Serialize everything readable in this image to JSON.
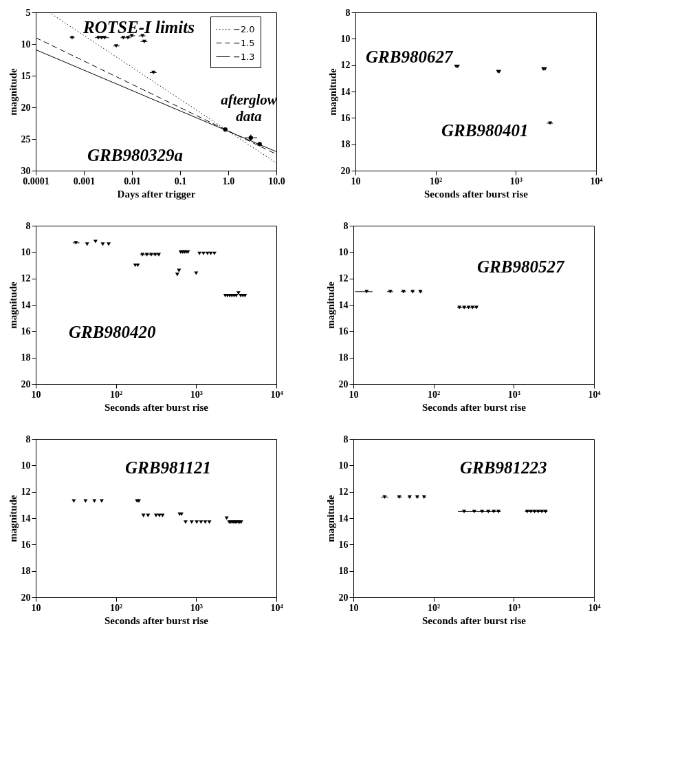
{
  "chart_data": [
    {
      "type": "scatter",
      "title": "GRB980329a",
      "xlabel": "Days after trigger",
      "ylabel": "magnitude",
      "log": "x",
      "legend": "top right",
      "xlim": [
        0.0001,
        10
      ],
      "xticks": [
        0.0001,
        0.001,
        0.01,
        0.1,
        {
          "value": 1,
          "label": "1.0"
        },
        {
          "value": 10,
          "label": "10.0"
        }
      ],
      "ylim": [
        30,
        5
      ],
      "yticks": [
        5,
        10,
        15,
        20,
        25,
        30
      ],
      "series": [
        {
          "name": "ROTSE-I limits",
          "marker": "triangle",
          "color": "#000000",
          "x": [
            0.00057,
            0.002,
            0.00234,
            0.0027,
            0.0047,
            0.0066,
            0.0082,
            0.0099,
            0.0165,
            0.018,
            0.028
          ],
          "values": [
            9.0,
            9.0,
            9.0,
            9.0,
            10.3,
            9.0,
            9.0,
            8.7,
            8.7,
            9.6,
            14.5
          ],
          "xerrors": [
            [
              0.00051,
              0.00064
            ],
            [
              0.0017,
              0.0021
            ],
            [
              0.0021,
              0.0027
            ],
            [
              0.0027,
              0.0033
            ],
            [
              0.0041,
              0.0055
            ],
            [
              0.0058,
              0.0073
            ],
            [
              0.0073,
              0.0093
            ],
            [
              0.0085,
              0.0116
            ],
            [
              0.0138,
              0.0191
            ],
            [
              0.0151,
              0.0209
            ],
            [
              0.0234,
              0.0324
            ]
          ]
        },
        {
          "name": "afterglow data",
          "marker": "circle",
          "color": "#000000",
          "x": [
            0.87,
            2.94,
            4.5
          ],
          "values": [
            23.5,
            24.8,
            25.8
          ],
          "errors": [
            0.1,
            0.5,
            0.2
          ],
          "xerrors": [
            [
              0.8,
              0.95
            ],
            [
              2.2,
              4.0
            ],
            [
              4.2,
              4.8
            ]
          ]
        },
        {
          "name": "−2.0",
          "type": "line",
          "line_style": "dotted",
          "color": "#000000",
          "x": [
            0.00019,
            10
          ],
          "values": [
            5,
            28.8
          ]
        },
        {
          "name": "−1.5",
          "type": "line",
          "line_style": "dashed",
          "color": "#000000",
          "x": [
            0.0001,
            10
          ],
          "values": [
            9.0,
            27.4
          ]
        },
        {
          "name": "−1.3",
          "type": "line",
          "line_style": "solid",
          "color": "#000000",
          "x": [
            0.0001,
            10
          ],
          "values": [
            10.9,
            27.0
          ]
        }
      ]
    },
    {
      "type": "scatter",
      "xlabel": "Seconds after burst rise",
      "ylabel": "magnitude",
      "log": "x",
      "xlim": [
        10,
        10000
      ],
      "xticks": [
        10,
        {
          "value": 100,
          "label": "10²"
        },
        {
          "value": 1000,
          "label": "10³"
        },
        {
          "value": 10000,
          "label": "10⁴"
        }
      ],
      "ylim": [
        20,
        8
      ],
      "yticks": [
        8,
        10,
        12,
        14,
        16,
        18,
        20
      ],
      "series": [
        {
          "name": "GRB980627",
          "marker": "triangle",
          "color": "#000000",
          "x": [
            180,
            189,
            600,
            620,
            2193,
            2311
          ],
          "values": [
            12.1,
            12.1,
            12.5,
            12.5,
            12.3,
            12.3
          ]
        },
        {
          "name": "GRB980401",
          "marker": "triangle",
          "color": "#000000",
          "x": [
            2673
          ],
          "values": [
            16.4
          ],
          "xerrors": [
            [
              2440,
              2900
            ]
          ]
        }
      ]
    },
    {
      "type": "scatter",
      "xlabel": "Seconds after burst rise",
      "ylabel": "magnitude",
      "log": "x",
      "xlim": [
        10,
        10000
      ],
      "xticks": [
        10,
        {
          "value": 100,
          "label": "10²"
        },
        {
          "value": 1000,
          "label": "10³"
        },
        {
          "value": 10000,
          "label": "10⁴"
        }
      ],
      "ylim": [
        20,
        8
      ],
      "yticks": [
        8,
        10,
        12,
        14,
        16,
        18,
        20
      ],
      "series": [
        {
          "name": "GRB980420",
          "marker": "triangle",
          "color": "#000000",
          "x": [
            31.6,
            43.7,
            55.6,
            68.5,
            81,
            174,
            187,
            214,
            243,
            275,
            308,
            342,
            581,
            611,
            641,
            676,
            711,
            750,
            790,
            1000,
            1100,
            1233,
            1384,
            1520,
            1688,
            2310,
            2462,
            2620,
            2788,
            2970,
            3162,
            3367,
            3585,
            3817,
            4064
          ],
          "values": [
            9.3,
            9.4,
            9.2,
            9.4,
            9.4,
            11.0,
            11.0,
            10.2,
            10.2,
            10.2,
            10.2,
            10.2,
            11.7,
            11.4,
            10.0,
            10.0,
            10.0,
            10.0,
            10.0,
            11.6,
            10.1,
            10.1,
            10.1,
            10.1,
            10.1,
            13.3,
            13.3,
            13.3,
            13.3,
            13.3,
            13.3,
            13.1,
            13.3,
            13.3,
            13.3
          ],
          "xerrors": [
            [
              29,
              35
            ],
            null,
            null,
            null,
            null,
            null,
            null,
            [
              200,
              225
            ],
            [
              225,
              252
            ],
            [
              252,
              283
            ],
            [
              283,
              318
            ],
            [
              318,
              356
            ],
            null,
            null,
            null,
            null,
            null,
            null,
            null,
            null,
            null,
            null,
            null,
            null,
            null,
            null,
            null,
            null,
            null,
            null,
            null,
            null,
            null,
            null,
            null
          ]
        }
      ]
    },
    {
      "type": "scatter",
      "xlabel": "Seconds after burst rise",
      "ylabel": "magnitude",
      "log": "x",
      "xlim": [
        10,
        10000
      ],
      "xticks": [
        10,
        {
          "value": 100,
          "label": "10²"
        },
        {
          "value": 1000,
          "label": "10³"
        },
        {
          "value": 10000,
          "label": "10⁴"
        }
      ],
      "ylim": [
        20,
        8
      ],
      "yticks": [
        8,
        10,
        12,
        14,
        16,
        18,
        20
      ],
      "series": [
        {
          "name": "GRB980527",
          "marker": "triangle",
          "color": "#000000",
          "x": [
            14.6,
            28.8,
            42.2,
            54.8,
            68.5,
            210,
            241,
            273,
            306,
            342
          ],
          "values": [
            13.0,
            13.0,
            13.0,
            13.0,
            13.0,
            14.2,
            14.2,
            14.2,
            14.2,
            14.2
          ],
          "xerrors": [
            [
              10.5,
              17.3
            ],
            [
              26.3,
              31.3
            ],
            [
              39,
              45.2
            ],
            [
              52,
              57.7
            ],
            [
              65.2,
              72.3
            ],
            [
              197,
              222
            ],
            [
              222,
              249
            ],
            [
              249,
              280
            ],
            [
              280,
              315
            ],
            [
              315,
              355
            ]
          ]
        }
      ]
    },
    {
      "type": "scatter",
      "xlabel": "Seconds after burst rise",
      "ylabel": "magnitude",
      "log": "x",
      "xlim": [
        10,
        10000
      ],
      "xticks": [
        10,
        {
          "value": 100,
          "label": "10²"
        },
        {
          "value": 1000,
          "label": "10³"
        },
        {
          "value": 10000,
          "label": "10⁴"
        }
      ],
      "ylim": [
        20,
        8
      ],
      "yticks": [
        8,
        10,
        12,
        14,
        16,
        18,
        20
      ],
      "series": [
        {
          "name": "GRB981121",
          "marker": "triangle",
          "color": "#000000",
          "x": [
            29.8,
            41.7,
            53.8,
            66.4,
            183,
            193,
            220,
            251,
            316,
            348,
            381,
            622,
            656,
            738,
            879,
            1016,
            1149,
            1298,
            1459,
            2399,
            2582,
            2697,
            2815,
            2938,
            3066,
            3200,
            3340,
            3486,
            3638
          ],
          "values": [
            12.7,
            12.7,
            12.7,
            12.7,
            12.7,
            12.7,
            13.8,
            13.8,
            13.8,
            13.8,
            13.8,
            13.7,
            13.7,
            14.3,
            14.3,
            14.3,
            14.3,
            14.3,
            14.3,
            14.0,
            14.3,
            14.3,
            14.3,
            14.3,
            14.3,
            14.3,
            14.3,
            14.3,
            14.3
          ]
        }
      ]
    },
    {
      "type": "scatter",
      "xlabel": "Seconds after burst rise",
      "ylabel": "magnitude",
      "log": "x",
      "xlim": [
        10,
        10000
      ],
      "xticks": [
        10,
        {
          "value": 100,
          "label": "10²"
        },
        {
          "value": 1000,
          "label": "10³"
        },
        {
          "value": 10000,
          "label": "10⁴"
        }
      ],
      "ylim": [
        20,
        8
      ],
      "yticks": [
        8,
        10,
        12,
        14,
        16,
        18,
        20
      ],
      "series": [
        {
          "name": "GRB981223",
          "marker": "triangle",
          "color": "#000000",
          "x": [
            24.5,
            37.3,
            50.4,
            62.5,
            76.0,
            240,
            321,
            402,
            481,
            563,
            643,
            1469,
            1633,
            1815,
            2016,
            2241,
            2490
          ],
          "values": [
            12.4,
            12.4,
            12.4,
            12.4,
            12.4,
            13.5,
            13.5,
            13.5,
            13.5,
            13.5,
            13.5,
            13.5,
            13.5,
            13.5,
            13.5,
            13.5,
            13.5
          ],
          "xerrors": [
            [
              22.2,
              27.0
            ],
            [
              35.1,
              40.4
            ],
            [
              47.5,
              52.3
            ],
            [
              59.8,
              65.9
            ],
            [
              73.3,
              80.5
            ],
            [
              201,
              277
            ],
            [
              277,
              360
            ],
            [
              360,
              440
            ],
            [
              440,
              520
            ],
            [
              520,
              610
            ],
            [
              610,
              689
            ],
            [
              1380,
              1535
            ],
            [
              1535,
              1706
            ],
            [
              1706,
              1897
            ],
            [
              1897,
              2105
            ],
            [
              2105,
              2340
            ],
            [
              2340,
              2626
            ]
          ]
        }
      ]
    }
  ]
}
